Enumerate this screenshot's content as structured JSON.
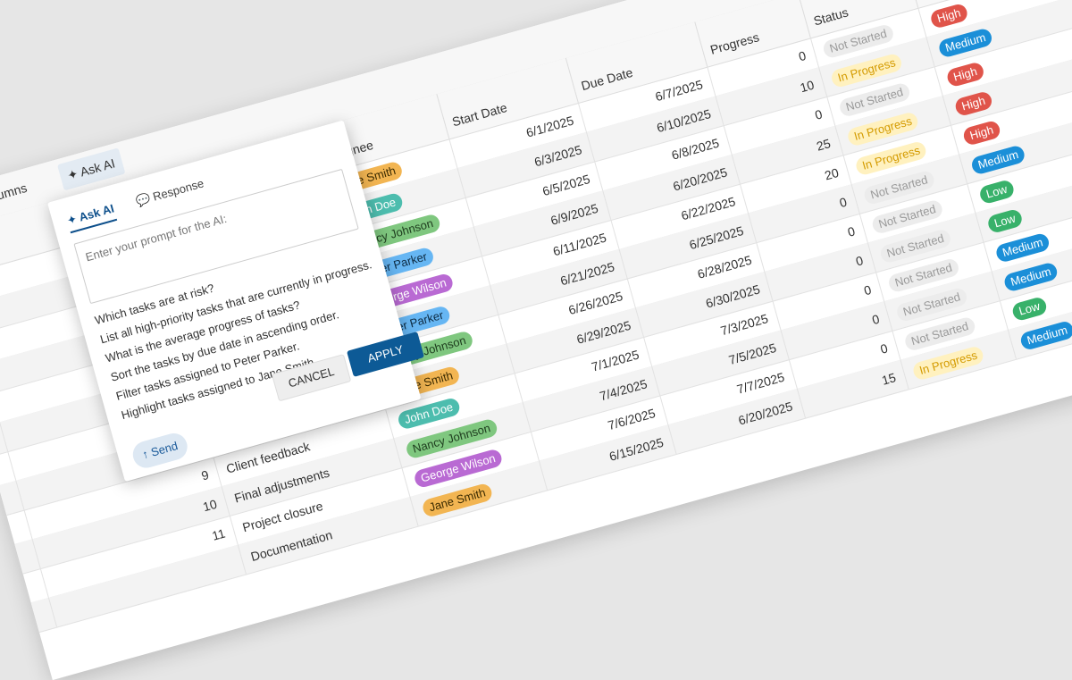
{
  "toolbar": {
    "columns_button": "Columns",
    "ask_ai_button": "Ask AI"
  },
  "grid": {
    "columns": [
      null,
      null,
      "Assignee",
      "Start Date",
      "Due Date",
      "Progress",
      "Status",
      null
    ],
    "rows": [
      {
        "id": null,
        "task": null,
        "assignee": "Jane Smith",
        "start": "6/1/2025",
        "due": "6/7/2025",
        "progress": 0,
        "status": "Not Started",
        "priority": "High"
      },
      {
        "id": null,
        "task": null,
        "assignee": "John Doe",
        "start": "6/3/2025",
        "due": "6/10/2025",
        "progress": 10,
        "status": "In Progress",
        "priority": "Medium"
      },
      {
        "id": null,
        "task": null,
        "assignee": "Nancy Johnson",
        "start": "6/5/2025",
        "due": "6/8/2025",
        "progress": 0,
        "status": "Not Started",
        "priority": "High"
      },
      {
        "id": null,
        "task": null,
        "assignee": "Peter Parker",
        "start": "6/9/2025",
        "due": "6/20/2025",
        "progress": 25,
        "status": "In Progress",
        "priority": "High"
      },
      {
        "id": null,
        "task": null,
        "assignee": "George Wilson",
        "start": "6/11/2025",
        "due": "6/22/2025",
        "progress": 20,
        "status": "In Progress",
        "priority": "High"
      },
      {
        "id": null,
        "task": null,
        "assignee": "Peter Parker",
        "start": "6/21/2025",
        "due": "6/25/2025",
        "progress": 0,
        "status": "Not Started",
        "priority": "Medium"
      },
      {
        "id": null,
        "task": null,
        "assignee": "Nancy Johnson",
        "start": "6/26/2025",
        "due": "6/28/2025",
        "progress": 0,
        "status": "Not Started",
        "priority": "Low"
      },
      {
        "id": null,
        "task": null,
        "assignee": "Jane Smith",
        "start": "6/29/2025",
        "due": "6/30/2025",
        "progress": 0,
        "status": "Not Started",
        "priority": "Low"
      },
      {
        "id": 9,
        "task": "Client feedback",
        "assignee": "John Doe",
        "start": "7/1/2025",
        "due": "7/3/2025",
        "progress": 0,
        "status": "Not Started",
        "priority": "Medium"
      },
      {
        "id": 10,
        "task": "Final adjustments",
        "assignee": "Nancy Johnson",
        "start": "7/4/2025",
        "due": "7/5/2025",
        "progress": 0,
        "status": "Not Started",
        "priority": "Medium"
      },
      {
        "id": 11,
        "task": "Project closure",
        "assignee": "George Wilson",
        "start": "7/6/2025",
        "due": "7/7/2025",
        "progress": 0,
        "status": "Not Started",
        "priority": "Low"
      },
      {
        "id": null,
        "task": "Documentation",
        "assignee": "Jane Smith",
        "start": "6/15/2025",
        "due": "6/20/2025",
        "progress": 15,
        "status": "In Progress",
        "priority": "Medium"
      }
    ],
    "colors": {
      "Jane Smith": [
        "#f2b552",
        "#3a2a00"
      ],
      "John Doe": [
        "#4dbdae",
        "#ffffff"
      ],
      "Nancy Johnson": [
        "#7fc77f",
        "#1d3b1d"
      ],
      "Peter Parker": [
        "#66b6f3",
        "#0e2c44"
      ],
      "George Wilson": [
        "#b96ad3",
        "#ffffff"
      ],
      "Not Started": [
        "#ececec",
        "#9a9a9a"
      ],
      "In Progress": [
        "#fff1bf",
        "#d49b00"
      ],
      "High": [
        "#e0544a",
        "#ffffff"
      ],
      "Medium": [
        "#1b8fd8",
        "#ffffff"
      ],
      "Low": [
        "#38b16a",
        "#ffffff"
      ]
    }
  },
  "popup": {
    "tabs": [
      "Ask AI",
      "Response"
    ],
    "placeholder": "Enter your prompt for the AI:",
    "suggestions": [
      "Which tasks are at risk?",
      "List all high-priority tasks that are currently in progress.",
      "What is the average progress of tasks?",
      "Sort the tasks by due date in ascending order.",
      "Filter tasks assigned to Peter Parker.",
      "Highlight tasks assigned to Jane Smith."
    ],
    "cancel": "CANCEL",
    "apply": "APPLY",
    "send": "Send"
  }
}
